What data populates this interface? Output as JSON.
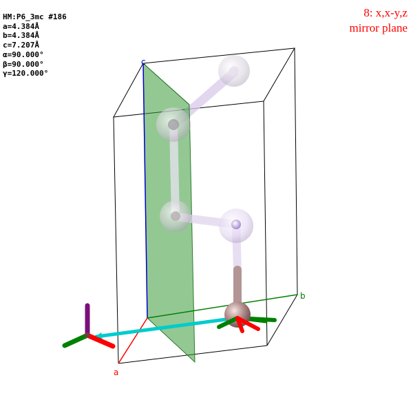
{
  "cell_info": {
    "space_group": "HM:P6_3mc #186",
    "a": "a=4.384Å",
    "b": "b=4.384Å",
    "c": "c=7.207Å",
    "alpha": "α=90.000°",
    "beta": "β=90.000°",
    "gamma": "γ=120.000°"
  },
  "symmetry_op": {
    "number_coords": "8: x,x-y,z",
    "type": "mirror plane"
  },
  "axis_labels": {
    "a": "a",
    "b": "b",
    "c": "c"
  },
  "colors": {
    "a_axis": "#ff0000",
    "b_axis": "#008000",
    "c_axis": "#0000cc",
    "mirror_plane": "#3a9a3a",
    "operation_text": "#ff0000",
    "translation_arrow": "#00cccc",
    "atom": "#b08a8a",
    "ghost_atom": "#d4c2e8"
  }
}
